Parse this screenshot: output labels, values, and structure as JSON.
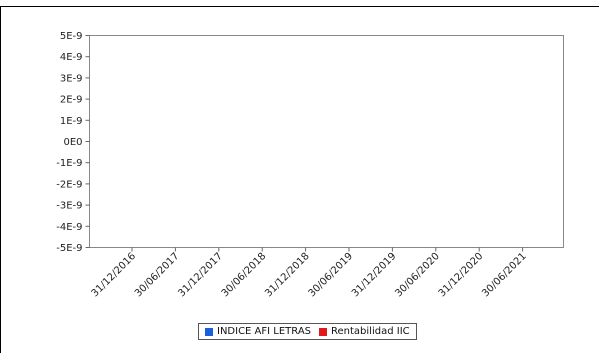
{
  "chart_data": {
    "type": "line",
    "x_ticks": [
      "31/12/2016",
      "30/06/2017",
      "31/12/2017",
      "30/06/2018",
      "31/12/2018",
      "30/06/2019",
      "31/12/2019",
      "30/06/2020",
      "31/12/2020",
      "30/06/2021"
    ],
    "y_ticks": [
      "5E-9",
      "4E-9",
      "3E-9",
      "2E-9",
      "1E-9",
      "0E0",
      "-1E-9",
      "-2E-9",
      "-3E-9",
      "-4E-9",
      "-5E-9"
    ],
    "ylim": [
      -5e-09,
      5e-09
    ],
    "grid": false,
    "legend_position": "bottom",
    "series": [
      {
        "name": "INDICE AFI LETRAS",
        "color": "#1a5fe0",
        "values": []
      },
      {
        "name": "Rentabilidad IIC",
        "color": "#e01a1a",
        "values": []
      }
    ],
    "title": "",
    "xlabel": "",
    "ylabel": ""
  }
}
